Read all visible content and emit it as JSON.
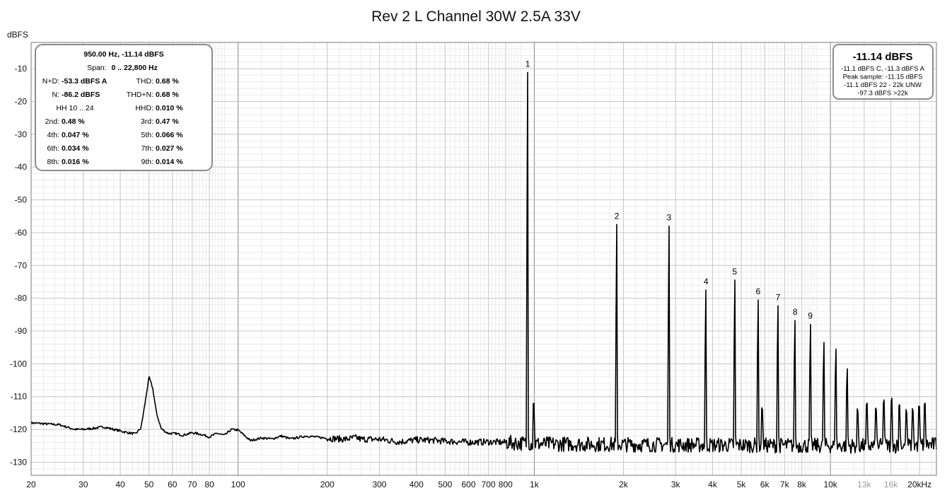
{
  "chart_data": {
    "type": "line",
    "title": "Rev 2 L Channel 30W 2.5A 33V",
    "ylabel": "dBFS",
    "xlim": [
      20,
      22800
    ],
    "ylim": [
      -134,
      -2
    ],
    "x_scale": "log",
    "y_ticks": [
      {
        "v": -10,
        "label": "-10"
      },
      {
        "v": -20,
        "label": "-20"
      },
      {
        "v": -30,
        "label": "-30"
      },
      {
        "v": -40,
        "label": "-40"
      },
      {
        "v": -50,
        "label": "-50"
      },
      {
        "v": -60,
        "label": "-60"
      },
      {
        "v": -70,
        "label": "-70"
      },
      {
        "v": -80,
        "label": "-80"
      },
      {
        "v": -90,
        "label": "-90"
      },
      {
        "v": -100,
        "label": "-100"
      },
      {
        "v": -110,
        "label": "-110"
      },
      {
        "v": -120,
        "label": "-120"
      },
      {
        "v": -130,
        "label": "-130"
      }
    ],
    "x_ticks": [
      {
        "v": 20,
        "label": "20"
      },
      {
        "v": 30,
        "label": "30"
      },
      {
        "v": 40,
        "label": "40"
      },
      {
        "v": 50,
        "label": "50"
      },
      {
        "v": 60,
        "label": "60"
      },
      {
        "v": 70,
        "label": "70"
      },
      {
        "v": 80,
        "label": "80"
      },
      {
        "v": 100,
        "label": "100"
      },
      {
        "v": 200,
        "label": "200"
      },
      {
        "v": 300,
        "label": "300"
      },
      {
        "v": 400,
        "label": "400"
      },
      {
        "v": 500,
        "label": "500"
      },
      {
        "v": 600,
        "label": "600"
      },
      {
        "v": 700,
        "label": "700"
      },
      {
        "v": 800,
        "label": "800"
      },
      {
        "v": 1000,
        "label": "1k"
      },
      {
        "v": 2000,
        "label": "2k"
      },
      {
        "v": 3000,
        "label": "3k"
      },
      {
        "v": 4000,
        "label": "4k"
      },
      {
        "v": 5000,
        "label": "5k"
      },
      {
        "v": 6000,
        "label": "6k"
      },
      {
        "v": 7000,
        "label": "7k"
      },
      {
        "v": 8000,
        "label": "8k"
      },
      {
        "v": 10000,
        "label": "10k"
      },
      {
        "v": 13000,
        "label": "13k",
        "minor": true
      },
      {
        "v": 16000,
        "label": "16k",
        "minor": true
      },
      {
        "v": 20000,
        "label": "20kHz"
      }
    ],
    "grid": true,
    "series": [
      {
        "noise_floor": [
          [
            20,
            -118.0
          ],
          [
            25,
            -118.6
          ],
          [
            28,
            -120.0
          ],
          [
            30,
            -120.0
          ],
          [
            33,
            -119.6
          ],
          [
            35,
            -119.2
          ],
          [
            38,
            -120.0
          ],
          [
            42,
            -120.9
          ],
          [
            45,
            -121.4
          ],
          [
            47,
            -119.5
          ],
          [
            48.5,
            -112.0
          ],
          [
            50,
            -104.0
          ],
          [
            51.5,
            -107.5
          ],
          [
            53,
            -115.0
          ],
          [
            55,
            -119.8
          ],
          [
            58,
            -121.2
          ],
          [
            62,
            -121.3
          ],
          [
            65,
            -121.8
          ],
          [
            70,
            -121.0
          ],
          [
            75,
            -121.5
          ],
          [
            80,
            -122.3
          ],
          [
            85,
            -121.2
          ],
          [
            90,
            -121.8
          ],
          [
            95,
            -120.0
          ],
          [
            100,
            -120.2
          ],
          [
            110,
            -123.4
          ],
          [
            120,
            -122.6
          ],
          [
            130,
            -122.9
          ],
          [
            140,
            -122.0
          ],
          [
            150,
            -122.9
          ],
          [
            170,
            -122.0
          ],
          [
            200,
            -122.7
          ],
          [
            230,
            -123.0
          ],
          [
            250,
            -122.5
          ],
          [
            260,
            -123.0
          ],
          [
            300,
            -123.0
          ],
          [
            350,
            -123.8
          ],
          [
            400,
            -123.2
          ],
          [
            450,
            -123.3
          ],
          [
            500,
            -123.6
          ],
          [
            600,
            -123.9
          ],
          [
            700,
            -123.8
          ],
          [
            800,
            -124.0
          ],
          [
            900,
            -124.2
          ],
          [
            1000,
            -124.4
          ],
          [
            1500,
            -124.5
          ],
          [
            2000,
            -124.6
          ],
          [
            3000,
            -124.7
          ],
          [
            5000,
            -124.8
          ],
          [
            8000,
            -124.9
          ],
          [
            12000,
            -125.0
          ],
          [
            16000,
            -125.0
          ],
          [
            20000,
            -124.8
          ],
          [
            22800,
            -124.6
          ]
        ],
        "peaks": [
          {
            "x": 950,
            "y": -11.14,
            "label": "1"
          },
          {
            "x": 1000,
            "y": -112.0
          },
          {
            "x": 1900,
            "y": -57.5,
            "label": "2"
          },
          {
            "x": 2850,
            "y": -58.0,
            "label": "3"
          },
          {
            "x": 3800,
            "y": -77.5,
            "label": "4"
          },
          {
            "x": 4750,
            "y": -74.5,
            "label": "5"
          },
          {
            "x": 5700,
            "y": -80.5,
            "label": "6"
          },
          {
            "x": 5900,
            "y": -114.0
          },
          {
            "x": 6650,
            "y": -82.3,
            "label": "7"
          },
          {
            "x": 7600,
            "y": -86.8,
            "label": "8"
          },
          {
            "x": 8550,
            "y": -88.0,
            "label": "9"
          },
          {
            "x": 9500,
            "y": -93.5
          },
          {
            "x": 10450,
            "y": -95.5
          },
          {
            "x": 11400,
            "y": -101.5
          },
          {
            "x": 12350,
            "y": -114.5
          },
          {
            "x": 13300,
            "y": -112.0
          },
          {
            "x": 14250,
            "y": -114.0
          },
          {
            "x": 15200,
            "y": -111.0
          },
          {
            "x": 16150,
            "y": -110.5
          },
          {
            "x": 17100,
            "y": -112.5
          },
          {
            "x": 18050,
            "y": -115.0
          },
          {
            "x": 19000,
            "y": -114.5
          },
          {
            "x": 19950,
            "y": -113.0
          },
          {
            "x": 20900,
            "y": -112.0
          }
        ]
      }
    ]
  },
  "stats_panel": {
    "header1": "950.00 Hz, -11.14 dBFS",
    "span_label": "Span:",
    "span_value": "0 .. 22,800 Hz",
    "rows": [
      {
        "l_label": "N+D:",
        "l_value": "-53.3 dBFS A",
        "r_label": "THD:",
        "r_value": "0.68 %"
      },
      {
        "l_label": "N:",
        "l_value": "-86.2 dBFS",
        "r_label": "THD+N:",
        "r_value": "0.68 %"
      },
      {
        "l_label": "HH 10 .. 24",
        "l_value": "",
        "r_label": "HHD:",
        "r_value": "0.010 %"
      },
      {
        "l_label": "2nd:",
        "l_value": "0.48 %",
        "r_label": "3rd:",
        "r_value": "0.47 %"
      },
      {
        "l_label": "4th:",
        "l_value": "0.047 %",
        "r_label": "5th:",
        "r_value": "0.066 %"
      },
      {
        "l_label": "6th:",
        "l_value": "0.034 %",
        "r_label": "7th:",
        "r_value": "0.027 %"
      },
      {
        "l_label": "8th:",
        "l_value": "0.016 %",
        "r_label": "9th:",
        "r_value": "0.014 %"
      }
    ]
  },
  "level_panel": {
    "big": "-11.14 dBFS",
    "lines": [
      "-11.1 dBFS C, -11.3 dBFS A",
      "Peak sample: -11.15 dBFS",
      "-11.1 dBFS 22 - 22k UNW",
      "-97.3 dBFS >22k"
    ]
  }
}
